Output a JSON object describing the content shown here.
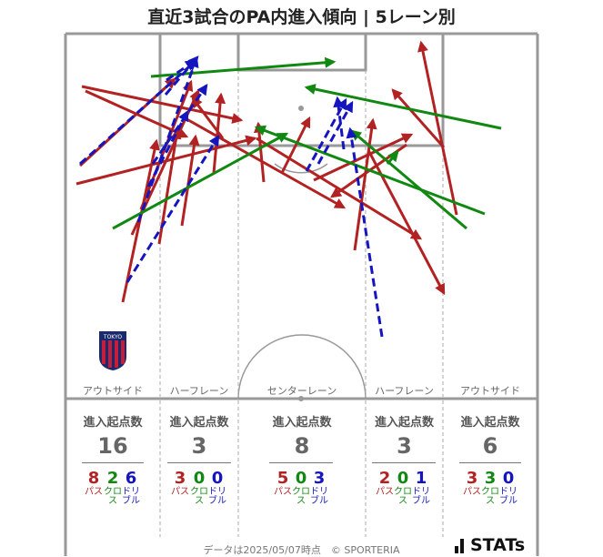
{
  "title": "直近3試合のPA内進入傾向 | 5レーン別",
  "lanes": [
    {
      "label": "アウトサイド",
      "stat_header": "進入起点数",
      "total": "16",
      "pass": "8",
      "cross": "2",
      "dribble": "6"
    },
    {
      "label": "ハーフレーン",
      "stat_header": "進入起点数",
      "total": "3",
      "pass": "3",
      "cross": "0",
      "dribble": "0"
    },
    {
      "label": "センターレーン",
      "stat_header": "進入起点数",
      "total": "8",
      "pass": "5",
      "cross": "0",
      "dribble": "3"
    },
    {
      "label": "ハーフレーン",
      "stat_header": "進入起点数",
      "total": "3",
      "pass": "2",
      "cross": "0",
      "dribble": "1"
    },
    {
      "label": "アウトサイド",
      "stat_header": "進入起点数",
      "total": "6",
      "pass": "3",
      "cross": "3",
      "dribble": "0"
    }
  ],
  "labels": {
    "pass": "パス",
    "cross": "クロス",
    "dribble": "ドリブル"
  },
  "colors": {
    "pass": "#b22222",
    "cross": "#118811",
    "dribble": "#1515c0",
    "pitch_line": "#999999"
  },
  "footer": "データは2025/05/07時点　© SPORTERIA",
  "brand": "STATs",
  "club_logo": "fc-tokyo-crest",
  "club_logo_text": "TOKYO"
}
